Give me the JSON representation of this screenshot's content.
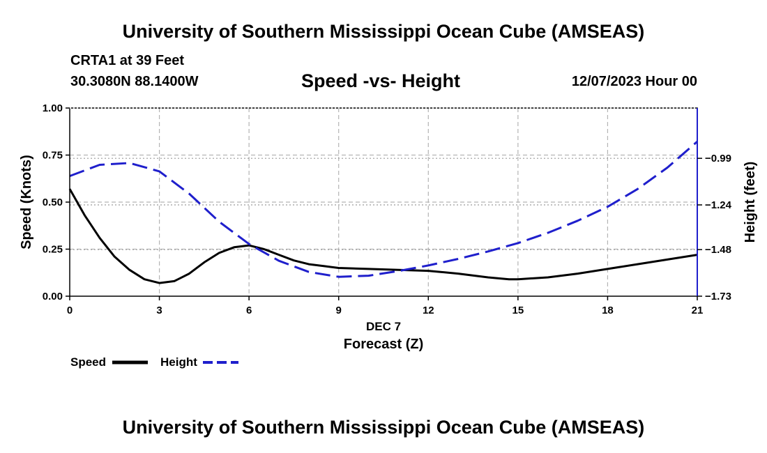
{
  "header": {
    "title": "University of Southern Mississippi Ocean Cube (AMSEAS)",
    "station": "CRTA1 at 39 Feet",
    "location": "30.3080N  88.1400W",
    "chart_title": "Speed -vs- Height",
    "datetime": "12/07/2023 Hour 00"
  },
  "footer": {
    "title": "University of Southern Mississippi Ocean Cube (AMSEAS)"
  },
  "chart_data": {
    "type": "line",
    "title": "Speed -vs- Height",
    "xlabel": "Forecast (Z)",
    "xlabel_date": "DEC 7",
    "ylabel": "Speed (Knots)",
    "y2label": "Height (feet)",
    "xlim": [
      0,
      21
    ],
    "ylim": [
      0,
      1
    ],
    "y2lim": [
      -1.73,
      -0.72
    ],
    "x_ticks": [
      0,
      3,
      6,
      9,
      12,
      15,
      18,
      21
    ],
    "x_tick_labels": [
      "0",
      "3",
      "6",
      "9",
      "12",
      "15",
      "18",
      "21"
    ],
    "y_ticks": [
      0,
      0.25,
      0.5,
      0.75,
      1.0
    ],
    "y_tick_labels": [
      "0.00",
      "0.25",
      "0.50",
      "0.75",
      "1.00"
    ],
    "y2_ticks": [
      -1.73,
      -1.48,
      -1.24,
      -0.99
    ],
    "y2_tick_labels": [
      "−1.73",
      "−1.48",
      "−1.24",
      "−0.99"
    ],
    "grid": true,
    "legend_position": "bottom-left",
    "series": [
      {
        "name": "Speed",
        "axis": "left",
        "color": "#000000",
        "style": "solid",
        "x": [
          0,
          0.5,
          1,
          1.5,
          2,
          2.5,
          3,
          3.5,
          4,
          4.5,
          5,
          5.5,
          6,
          6.5,
          7,
          7.5,
          8,
          8.5,
          9,
          10,
          11,
          12,
          13,
          14,
          14.7,
          15,
          16,
          17,
          18,
          19,
          20,
          21
        ],
        "values": [
          0.57,
          0.43,
          0.31,
          0.21,
          0.14,
          0.09,
          0.07,
          0.08,
          0.12,
          0.18,
          0.23,
          0.26,
          0.27,
          0.25,
          0.22,
          0.19,
          0.17,
          0.16,
          0.15,
          0.145,
          0.14,
          0.135,
          0.12,
          0.1,
          0.09,
          0.09,
          0.1,
          0.12,
          0.145,
          0.17,
          0.195,
          0.22
        ]
      },
      {
        "name": "Height",
        "axis": "right",
        "color": "#1f1fcc",
        "style": "dashed",
        "x": [
          0,
          1,
          2,
          3,
          4,
          5,
          6,
          7,
          8,
          9,
          10,
          11,
          12,
          13,
          14,
          15,
          16,
          17,
          18,
          19,
          20,
          21
        ],
        "values": [
          -1.085,
          -1.025,
          -1.015,
          -1.06,
          -1.18,
          -1.33,
          -1.45,
          -1.54,
          -1.6,
          -1.626,
          -1.62,
          -1.595,
          -1.565,
          -1.53,
          -1.49,
          -1.445,
          -1.39,
          -1.325,
          -1.25,
          -1.155,
          -1.04,
          -0.9
        ]
      }
    ]
  }
}
